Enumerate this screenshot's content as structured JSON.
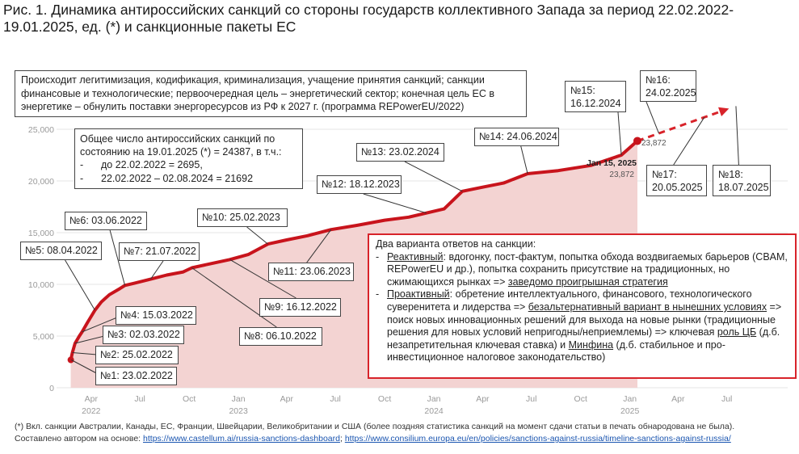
{
  "title": "Рис. 1. Динамика антироссийских санкций со стороны государств коллективного Запада за период 22.02.2022-19.01.2025, ед. (*) и санкционные пакеты ЕС",
  "chart_data": {
    "type": "area",
    "ylim": [
      0,
      25000
    ],
    "yticks": [
      0,
      5000,
      10000,
      15000,
      20000,
      25000
    ],
    "ytick_labels": [
      "0",
      "5,000",
      "10,000",
      "15,000",
      "20,000",
      "25,000"
    ],
    "xlim": [
      "2022-02-15",
      "2025-09-30"
    ],
    "xticks": [
      {
        "date": "2022-04-01",
        "label": "Apr",
        "year": "2022"
      },
      {
        "date": "2022-07-01",
        "label": "Jul",
        "year": ""
      },
      {
        "date": "2022-10-01",
        "label": "Oct",
        "year": ""
      },
      {
        "date": "2023-01-01",
        "label": "Jan",
        "year": "2023"
      },
      {
        "date": "2023-04-01",
        "label": "Apr",
        "year": ""
      },
      {
        "date": "2023-07-01",
        "label": "Jul",
        "year": ""
      },
      {
        "date": "2023-10-01",
        "label": "Oct",
        "year": ""
      },
      {
        "date": "2024-01-01",
        "label": "Jan",
        "year": "2024"
      },
      {
        "date": "2024-04-01",
        "label": "Apr",
        "year": ""
      },
      {
        "date": "2024-07-01",
        "label": "Jul",
        "year": ""
      },
      {
        "date": "2024-10-01",
        "label": "Oct",
        "year": ""
      },
      {
        "date": "2025-01-01",
        "label": "Jan",
        "year": "2025"
      },
      {
        "date": "2025-04-01",
        "label": "Apr",
        "year": ""
      },
      {
        "date": "2025-07-01",
        "label": "Jul",
        "year": ""
      }
    ],
    "grid": "horizontal",
    "series": [
      {
        "points": [
          [
            "2022-02-22",
            2695
          ],
          [
            "2022-02-25",
            3400
          ],
          [
            "2022-03-02",
            4300
          ],
          [
            "2022-03-10",
            5000
          ],
          [
            "2022-03-15",
            5400
          ],
          [
            "2022-03-25",
            6300
          ],
          [
            "2022-04-08",
            7500
          ],
          [
            "2022-04-20",
            8300
          ],
          [
            "2022-05-05",
            9000
          ],
          [
            "2022-05-25",
            9600
          ],
          [
            "2022-06-03",
            9900
          ],
          [
            "2022-06-20",
            10100
          ],
          [
            "2022-07-21",
            10500
          ],
          [
            "2022-08-20",
            10900
          ],
          [
            "2022-09-20",
            11200
          ],
          [
            "2022-10-06",
            11600
          ],
          [
            "2022-11-10",
            12000
          ],
          [
            "2022-12-16",
            12400
          ],
          [
            "2023-01-20",
            12900
          ],
          [
            "2023-02-25",
            13900
          ],
          [
            "2023-04-01",
            14300
          ],
          [
            "2023-05-10",
            14700
          ],
          [
            "2023-06-23",
            15300
          ],
          [
            "2023-08-10",
            15700
          ],
          [
            "2023-10-01",
            16200
          ],
          [
            "2023-11-15",
            16500
          ],
          [
            "2023-12-18",
            16900
          ],
          [
            "2024-01-20",
            17300
          ],
          [
            "2024-02-23",
            19000
          ],
          [
            "2024-04-01",
            19400
          ],
          [
            "2024-05-10",
            19800
          ],
          [
            "2024-06-24",
            20700
          ],
          [
            "2024-08-20",
            21000
          ],
          [
            "2024-10-20",
            21500
          ],
          [
            "2024-12-16",
            22500
          ],
          [
            "2025-01-15",
            23872
          ]
        ]
      }
    ],
    "forecast": [
      [
        "2025-01-15",
        23872
      ],
      [
        "2025-07-05",
        27000
      ]
    ],
    "current": {
      "date": "2025-01-15",
      "value": 23872,
      "date_label": "Jan 15, 2025",
      "value_label": "23,872"
    },
    "start_point": {
      "date": "2022-02-22",
      "value": 2695
    }
  },
  "top_note": "Происходит легитимизация, кодификация, криминализация, учащение принятия санкций; санкции финансовые и технологические; первоочередная цель – энергетический сектор; конечная цель ЕС в энергетике – обнулить поставки энергоресурсов из РФ к 2027 г. (программа REPowerEU/2022)",
  "total_note": {
    "line1": "Общее число антироссийских санкций по состоянию на 19.01.2025 (*) = 24387, в т.ч.:",
    "items": [
      {
        "dash": "-",
        "text": "до 22.02.2022 = 2695,"
      },
      {
        "dash": "-",
        "text": "22.02.2022 – 02.08.2024 = 21692"
      }
    ]
  },
  "packages": [
    {
      "label": "№1: 23.02.2022",
      "date": "2022-02-23"
    },
    {
      "label": "№2: 25.02.2022",
      "date": "2022-02-25"
    },
    {
      "label": "№3: 02.03.2022",
      "date": "2022-03-02"
    },
    {
      "label": "№4: 15.03.2022",
      "date": "2022-03-15"
    },
    {
      "label": "№5: 08.04.2022",
      "date": "2022-04-08"
    },
    {
      "label": "№6: 03.06.2022",
      "date": "2022-06-03"
    },
    {
      "label": "№7: 21.07.2022",
      "date": "2022-07-21"
    },
    {
      "label": "№8: 06.10.2022",
      "date": "2022-10-06"
    },
    {
      "label": "№9: 16.12.2022",
      "date": "2022-12-16"
    },
    {
      "label": "№10: 25.02.2023",
      "date": "2023-02-25"
    },
    {
      "label": "№11: 23.06.2023",
      "date": "2023-06-23"
    },
    {
      "label": "№12: 18.12.2023",
      "date": "2023-12-18"
    },
    {
      "label": "№13: 23.02.2024",
      "date": "2024-02-23"
    },
    {
      "label": "№14: 24.06.2024",
      "date": "2024-06-24"
    },
    {
      "label": "№15: 16.12.2024",
      "date": "2024-12-16"
    },
    {
      "label": "№16: 24.02.2025",
      "date": "2025-02-24"
    },
    {
      "label": "№17: 20.05.2025",
      "date": "2025-05-20"
    },
    {
      "label": "№18: 18.07.2025",
      "date": "2025-07-18"
    }
  ],
  "responses": {
    "heading": "Два варианта ответов на санкции:",
    "reactive": {
      "dash": "-",
      "term": "Реактивный",
      "text": ": вдогонку, пост-фактум, попытка обхода воздвигаемых барьеров (CBAM, REPowerEU и др.), попытка сохранить присутствие на традиционных, но сжимающихся рынках => ",
      "conclusion": "заведомо проигрышная стратегия"
    },
    "proactive": {
      "dash": "-",
      "term": "Проактивный",
      "text1": ": обретение интеллектуального, финансового, технологического суверенитета и лидерства => ",
      "emph": "безальтернативный вариант в нынешних условиях",
      "text2": " => поиск новых инновационных решений для выхода на новые рынки (традиционные решения для новых условий непригодны/неприемлемы) => ключевая ",
      "role": "роль ЦБ",
      "text3": " (д.б. незапретительная ключевая ставка) и ",
      "minfin": "Минфина",
      "text4": " (д.б. стабильное и про-инвестиционное налоговое законодательство)"
    }
  },
  "footnote": {
    "line1": "(*) Вкл. санкции Австралии, Канады, ЕС, Франции, Швейцарии, Великобритании и США (более поздняя статистика санкций на момент сдачи статьи в печать обнародована не была).",
    "line2_prefix": "Составлено автором на основе: ",
    "link1": "https://www.castellum.ai/russia-sanctions-dashboard",
    "sep": "; ",
    "link2": "https://www.consilium.europa.eu/en/policies/sanctions-against-russia/timeline-sanctions-against-russia/"
  },
  "colors": {
    "line": "#c8141c",
    "fill": "#f3d3d2",
    "grid": "#e4e4e4",
    "axis_text": "#9a9a9a",
    "box_red": "#d8232a"
  }
}
